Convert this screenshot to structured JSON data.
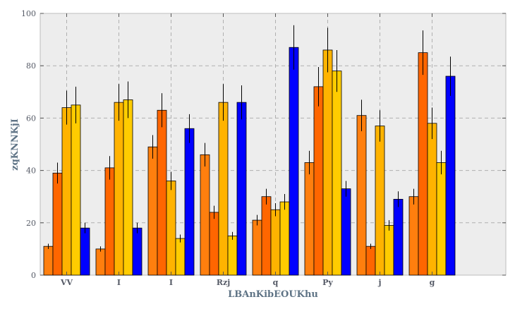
{
  "chart_data": {
    "type": "bar",
    "title": "",
    "xlabel": "LBAnKibEOUKhu",
    "ylabel": "zqKNNKjI",
    "ylim": [
      0,
      100
    ],
    "yticks": [
      0,
      20,
      40,
      60,
      80,
      100
    ],
    "grid": true,
    "legend": "none",
    "categories": [
      "VV",
      "I",
      "I",
      "Rzj",
      "q",
      "Py",
      "j",
      "g"
    ],
    "series": [
      {
        "color": "#ff7f0e",
        "values": [
          11,
          10,
          49,
          46,
          21,
          43,
          61,
          30
        ],
        "errors": [
          1,
          1,
          4.5,
          4.5,
          2,
          4.5,
          6,
          3
        ]
      },
      {
        "color": "#ff6600",
        "values": [
          39,
          41,
          63,
          24,
          30,
          72,
          11,
          85
        ],
        "errors": [
          4,
          4.5,
          6.5,
          2.5,
          3,
          7.5,
          1,
          8.5
        ]
      },
      {
        "color": "#ffb300",
        "values": [
          64,
          66,
          36,
          66,
          25,
          86,
          57,
          58
        ],
        "errors": [
          6.5,
          7,
          3.5,
          7,
          2.5,
          8.5,
          6,
          6
        ]
      },
      {
        "color": "#ffcc00",
        "values": [
          65,
          67,
          14,
          15,
          28,
          78,
          19,
          43
        ],
        "errors": [
          7,
          7,
          1.5,
          1.5,
          3,
          8,
          2,
          4.5
        ]
      },
      {
        "color": "#0000ff",
        "values": [
          18,
          18,
          56,
          66,
          87,
          33,
          29,
          76
        ],
        "errors": [
          2,
          2,
          5.5,
          6.5,
          8.5,
          3,
          3,
          7.5
        ]
      }
    ]
  }
}
